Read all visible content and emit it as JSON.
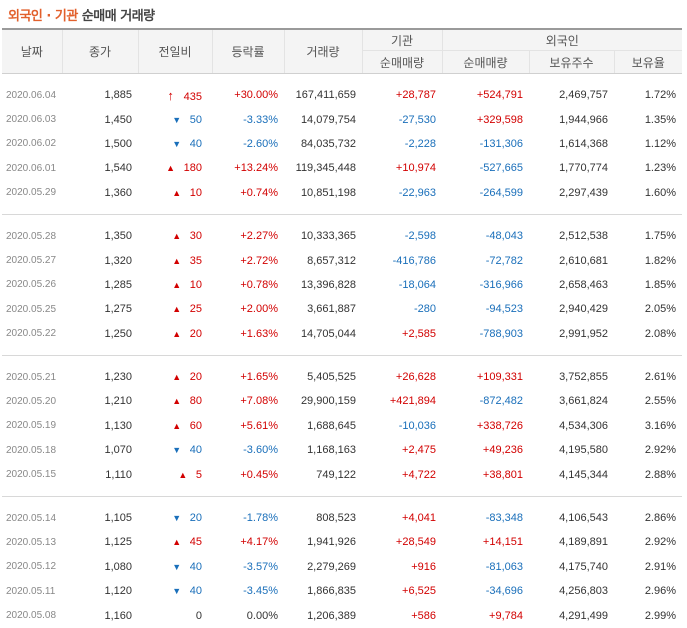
{
  "title": {
    "part1": "외국인 · 기관",
    "part2": " 순매매 거래량"
  },
  "headers": {
    "date": "날짜",
    "close": "종가",
    "change": "전일비",
    "rate": "등락률",
    "volume": "거래량",
    "inst_group": "기관",
    "inst_net": "순매매량",
    "foreign_group": "외국인",
    "foreign_net": "순매매량",
    "holdings": "보유주수",
    "ratio": "보유율"
  },
  "colors": {
    "up": "#d20000",
    "down": "#1a6fba",
    "accent": "#e2602c"
  },
  "icons": {
    "up": "▲",
    "down": "▼",
    "upper_limit": "🡅"
  },
  "rows": [
    {
      "date": "2020.06.04",
      "close": "1,885",
      "dir": "limit",
      "change": "435",
      "rate": "+30.00%",
      "volume": "167,411,659",
      "inst": "+28,787",
      "foreign": "+524,791",
      "holdings": "2,469,757",
      "ratio": "1.72%"
    },
    {
      "date": "2020.06.03",
      "close": "1,450",
      "dir": "down",
      "change": "50",
      "rate": "-3.33%",
      "volume": "14,079,754",
      "inst": "-27,530",
      "foreign": "+329,598",
      "holdings": "1,944,966",
      "ratio": "1.35%"
    },
    {
      "date": "2020.06.02",
      "close": "1,500",
      "dir": "down",
      "change": "40",
      "rate": "-2.60%",
      "volume": "84,035,732",
      "inst": "-2,228",
      "foreign": "-131,306",
      "holdings": "1,614,368",
      "ratio": "1.12%"
    },
    {
      "date": "2020.06.01",
      "close": "1,540",
      "dir": "up",
      "change": "180",
      "rate": "+13.24%",
      "volume": "119,345,448",
      "inst": "+10,974",
      "foreign": "-527,665",
      "holdings": "1,770,774",
      "ratio": "1.23%"
    },
    {
      "date": "2020.05.29",
      "close": "1,360",
      "dir": "up",
      "change": "10",
      "rate": "+0.74%",
      "volume": "10,851,198",
      "inst": "-22,963",
      "foreign": "-264,599",
      "holdings": "2,297,439",
      "ratio": "1.60%"
    },
    {
      "date": "2020.05.28",
      "close": "1,350",
      "dir": "up",
      "change": "30",
      "rate": "+2.27%",
      "volume": "10,333,365",
      "inst": "-2,598",
      "foreign": "-48,043",
      "holdings": "2,512,538",
      "ratio": "1.75%"
    },
    {
      "date": "2020.05.27",
      "close": "1,320",
      "dir": "up",
      "change": "35",
      "rate": "+2.72%",
      "volume": "8,657,312",
      "inst": "-416,786",
      "foreign": "-72,782",
      "holdings": "2,610,681",
      "ratio": "1.82%"
    },
    {
      "date": "2020.05.26",
      "close": "1,285",
      "dir": "up",
      "change": "10",
      "rate": "+0.78%",
      "volume": "13,396,828",
      "inst": "-18,064",
      "foreign": "-316,966",
      "holdings": "2,658,463",
      "ratio": "1.85%"
    },
    {
      "date": "2020.05.25",
      "close": "1,275",
      "dir": "up",
      "change": "25",
      "rate": "+2.00%",
      "volume": "3,661,887",
      "inst": "-280",
      "foreign": "-94,523",
      "holdings": "2,940,429",
      "ratio": "2.05%"
    },
    {
      "date": "2020.05.22",
      "close": "1,250",
      "dir": "up",
      "change": "20",
      "rate": "+1.63%",
      "volume": "14,705,044",
      "inst": "+2,585",
      "foreign": "-788,903",
      "holdings": "2,991,952",
      "ratio": "2.08%"
    },
    {
      "date": "2020.05.21",
      "close": "1,230",
      "dir": "up",
      "change": "20",
      "rate": "+1.65%",
      "volume": "5,405,525",
      "inst": "+26,628",
      "foreign": "+109,331",
      "holdings": "3,752,855",
      "ratio": "2.61%"
    },
    {
      "date": "2020.05.20",
      "close": "1,210",
      "dir": "up",
      "change": "80",
      "rate": "+7.08%",
      "volume": "29,900,159",
      "inst": "+421,894",
      "foreign": "-872,482",
      "holdings": "3,661,824",
      "ratio": "2.55%"
    },
    {
      "date": "2020.05.19",
      "close": "1,130",
      "dir": "up",
      "change": "60",
      "rate": "+5.61%",
      "volume": "1,688,645",
      "inst": "-10,036",
      "foreign": "+338,726",
      "holdings": "4,534,306",
      "ratio": "3.16%"
    },
    {
      "date": "2020.05.18",
      "close": "1,070",
      "dir": "down",
      "change": "40",
      "rate": "-3.60%",
      "volume": "1,168,163",
      "inst": "+2,475",
      "foreign": "+49,236",
      "holdings": "4,195,580",
      "ratio": "2.92%"
    },
    {
      "date": "2020.05.15",
      "close": "1,110",
      "dir": "up",
      "change": "5",
      "rate": "+0.45%",
      "volume": "749,122",
      "inst": "+4,722",
      "foreign": "+38,801",
      "holdings": "4,145,344",
      "ratio": "2.88%"
    },
    {
      "date": "2020.05.14",
      "close": "1,105",
      "dir": "down",
      "change": "20",
      "rate": "-1.78%",
      "volume": "808,523",
      "inst": "+4,041",
      "foreign": "-83,348",
      "holdings": "4,106,543",
      "ratio": "2.86%"
    },
    {
      "date": "2020.05.13",
      "close": "1,125",
      "dir": "up",
      "change": "45",
      "rate": "+4.17%",
      "volume": "1,941,926",
      "inst": "+28,549",
      "foreign": "+14,151",
      "holdings": "4,189,891",
      "ratio": "2.92%"
    },
    {
      "date": "2020.05.12",
      "close": "1,080",
      "dir": "down",
      "change": "40",
      "rate": "-3.57%",
      "volume": "2,279,269",
      "inst": "+916",
      "foreign": "-81,063",
      "holdings": "4,175,740",
      "ratio": "2.91%"
    },
    {
      "date": "2020.05.11",
      "close": "1,120",
      "dir": "down",
      "change": "40",
      "rate": "-3.45%",
      "volume": "1,866,835",
      "inst": "+6,525",
      "foreign": "-34,696",
      "holdings": "4,256,803",
      "ratio": "2.96%"
    },
    {
      "date": "2020.05.08",
      "close": "1,160",
      "dir": "none",
      "change": "0",
      "rate": "0.00%",
      "volume": "1,206,389",
      "inst": "+586",
      "foreign": "+9,784",
      "holdings": "4,291,499",
      "ratio": "2.99%"
    }
  ]
}
